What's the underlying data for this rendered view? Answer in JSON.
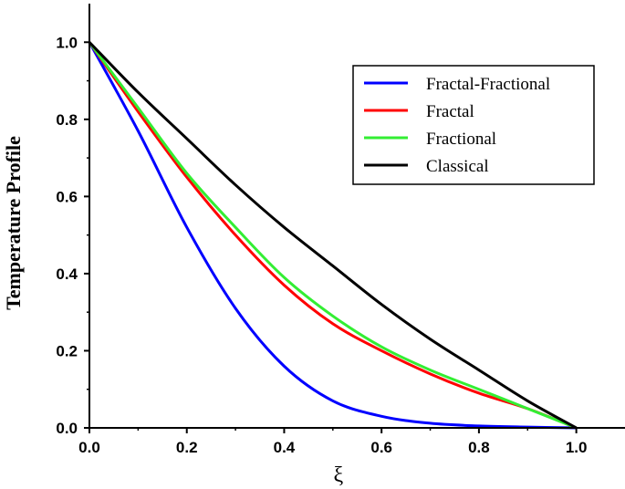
{
  "chart_data": {
    "type": "line",
    "xlabel": "ξ",
    "ylabel": "Temperature Profile",
    "xlim": [
      0.0,
      1.1
    ],
    "ylim": [
      0.0,
      1.1
    ],
    "xticks": [
      "0.0",
      "0.2",
      "0.4",
      "0.6",
      "0.8",
      "1.0"
    ],
    "yticks": [
      "0.0",
      "0.2",
      "0.4",
      "0.6",
      "0.8",
      "1.0"
    ],
    "grid": false,
    "legend_position": "top-right",
    "x": [
      0.0,
      0.1,
      0.2,
      0.3,
      0.4,
      0.5,
      0.6,
      0.7,
      0.8,
      0.9,
      1.0
    ],
    "series": [
      {
        "name": "Fractal-Fractional",
        "color": "#0000ff",
        "values": [
          1.0,
          0.77,
          0.52,
          0.31,
          0.16,
          0.07,
          0.03,
          0.012,
          0.005,
          0.002,
          0.0
        ]
      },
      {
        "name": "Fractal",
        "color": "#ff0000",
        "values": [
          1.0,
          0.82,
          0.65,
          0.5,
          0.37,
          0.27,
          0.2,
          0.14,
          0.09,
          0.05,
          0.0
        ]
      },
      {
        "name": "Fractional",
        "color": "#33ee33",
        "values": [
          1.0,
          0.83,
          0.66,
          0.52,
          0.39,
          0.29,
          0.21,
          0.15,
          0.1,
          0.05,
          0.0
        ]
      },
      {
        "name": "Classical",
        "color": "#000000",
        "values": [
          1.0,
          0.87,
          0.75,
          0.63,
          0.52,
          0.42,
          0.32,
          0.23,
          0.15,
          0.07,
          0.0
        ]
      }
    ]
  }
}
